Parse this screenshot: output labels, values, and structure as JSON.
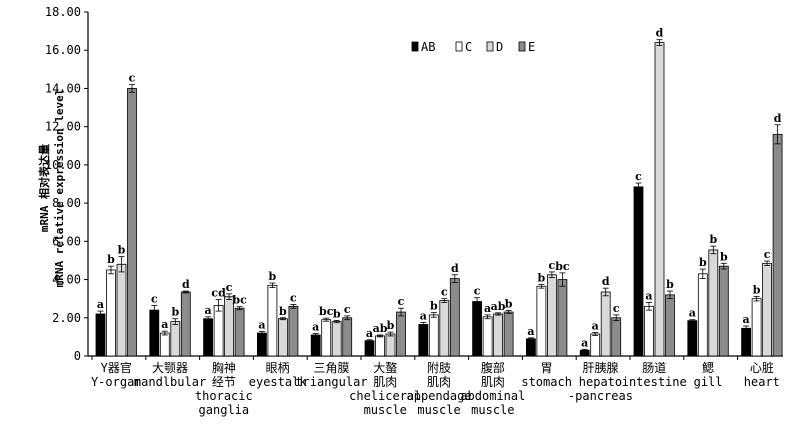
{
  "chart_data": {
    "type": "bar",
    "title": "",
    "xlabel": "",
    "ylabel_cn": "mRNA 相对表达量",
    "ylabel_en": "mRNA relative expression level",
    "ylim": [
      0,
      18
    ],
    "yticks": [
      "0",
      "2.00",
      "4.00",
      "6.00",
      "8.00",
      "10.00",
      "12.00",
      "14.00",
      "16.00",
      "18.00"
    ],
    "legend_position": "top-right",
    "categories": [
      {
        "cn": "Y器官",
        "en": [
          "Y-organ"
        ]
      },
      {
        "cn": "大颚器",
        "en": [
          "mandlbular"
        ]
      },
      {
        "cn": "胸神",
        "cn2": "经节",
        "en": [
          "thoracic",
          "ganglia"
        ]
      },
      {
        "cn": "眼柄",
        "en": [
          "eyestalk"
        ]
      },
      {
        "cn": "三角膜",
        "en": [
          "triangular"
        ]
      },
      {
        "cn": "大螯",
        "cn2": "肌肉",
        "en": [
          "cheliceral",
          "muscle"
        ]
      },
      {
        "cn": "附肢",
        "cn2": "肌肉",
        "en": [
          "appendage",
          "muscle"
        ]
      },
      {
        "cn": "腹部",
        "cn2": "肌肉",
        "en": [
          "abdominal",
          "muscle"
        ]
      },
      {
        "cn": "胃",
        "en": [
          "stomach"
        ]
      },
      {
        "cn": "肝胰腺",
        "en": [
          "hepato",
          "-pancreas"
        ]
      },
      {
        "cn": "肠道",
        "en": [
          "intestine"
        ]
      },
      {
        "cn": "鳃",
        "en": [
          "gill"
        ]
      },
      {
        "cn": "心脏",
        "en": [
          "heart"
        ]
      }
    ],
    "series": [
      {
        "name": "AB",
        "color": "#000000",
        "values": [
          2.2,
          2.4,
          1.95,
          1.2,
          1.1,
          0.8,
          1.65,
          2.85,
          0.9,
          0.3,
          8.85,
          1.85,
          1.45
        ],
        "errors": [
          0.15,
          0.25,
          0.1,
          0.08,
          0.08,
          0.05,
          0.1,
          0.2,
          0.05,
          0.05,
          0.2,
          0.05,
          0.12
        ],
        "letters": [
          "a",
          "c",
          "a",
          "a",
          "a",
          "a",
          "a",
          "c",
          "a",
          "a",
          "c",
          "a",
          "a"
        ]
      },
      {
        "name": "C",
        "color": "#ffffff",
        "values": [
          4.5,
          1.2,
          2.65,
          3.7,
          1.9,
          1.05,
          2.15,
          2.05,
          3.65,
          1.15,
          2.6,
          4.3,
          3.0
        ],
        "errors": [
          0.2,
          0.1,
          0.3,
          0.12,
          0.08,
          0.05,
          0.12,
          0.1,
          0.1,
          0.08,
          0.2,
          0.25,
          0.12
        ],
        "letters": [
          "b",
          "a",
          "cd",
          "b",
          "bc",
          "ab",
          "b",
          "a",
          "b",
          "a",
          "a",
          "b",
          "b"
        ]
      },
      {
        "name": "D",
        "color": "#d9d9d9",
        "values": [
          4.8,
          1.8,
          3.1,
          1.95,
          1.8,
          1.15,
          2.9,
          2.2,
          4.25,
          3.35,
          16.4,
          5.55,
          4.85
        ],
        "errors": [
          0.4,
          0.15,
          0.15,
          0.05,
          0.06,
          0.1,
          0.1,
          0.06,
          0.15,
          0.2,
          0.15,
          0.2,
          0.12
        ],
        "letters": [
          "b",
          "b",
          "c",
          "b",
          "b",
          "b",
          "c",
          "ab",
          "c",
          "d",
          "d",
          "b",
          "c"
        ]
      },
      {
        "name": "E",
        "color": "#8c8c8c",
        "values": [
          14.0,
          3.35,
          2.5,
          2.6,
          2.0,
          2.3,
          4.05,
          2.3,
          4.0,
          2.0,
          3.2,
          4.7,
          11.6
        ],
        "errors": [
          0.2,
          0.05,
          0.08,
          0.1,
          0.1,
          0.2,
          0.2,
          0.08,
          0.35,
          0.15,
          0.2,
          0.15,
          0.5
        ],
        "letters": [
          "c",
          "d",
          "bc",
          "c",
          "c",
          "c",
          "d",
          "b",
          "bc",
          "c",
          "b",
          "b",
          "d"
        ]
      }
    ]
  }
}
